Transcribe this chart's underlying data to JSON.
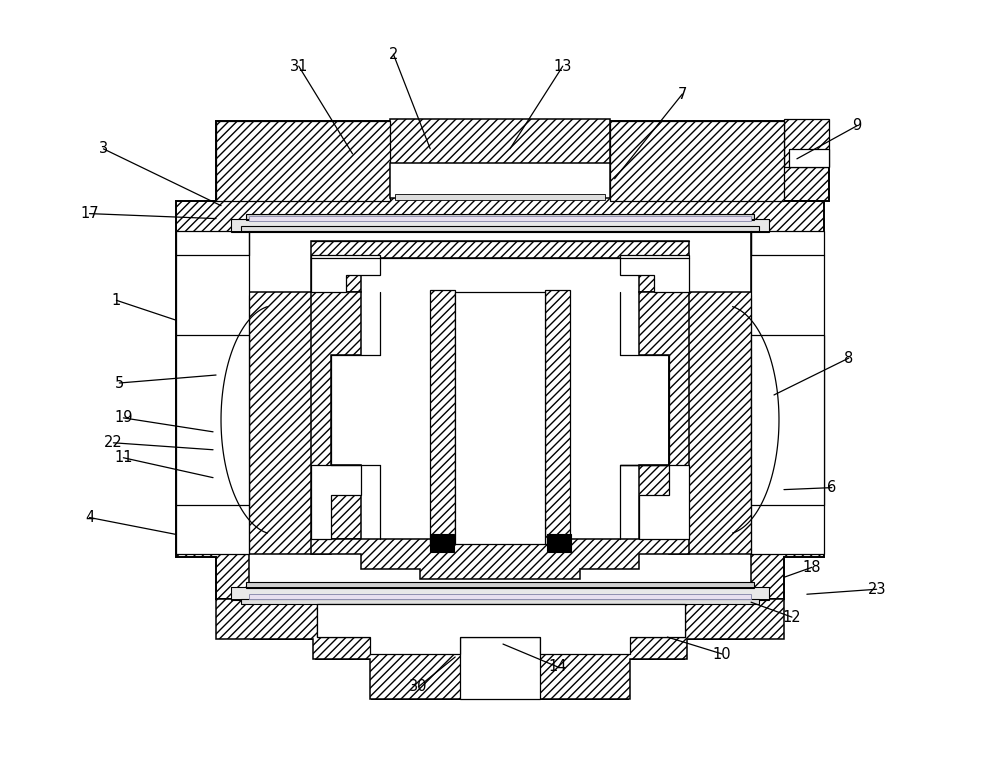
{
  "fig_width": 10.0,
  "fig_height": 7.66,
  "dpi": 100,
  "bg_color": "#ffffff",
  "leaders": [
    [
      "1",
      115,
      300,
      175,
      320
    ],
    [
      "2",
      393,
      53,
      430,
      148
    ],
    [
      "3",
      102,
      148,
      220,
      205
    ],
    [
      "4",
      88,
      518,
      175,
      535
    ],
    [
      "5",
      118,
      383,
      215,
      375
    ],
    [
      "6",
      833,
      488,
      785,
      490
    ],
    [
      "7",
      683,
      93,
      615,
      178
    ],
    [
      "8",
      850,
      358,
      775,
      395
    ],
    [
      "9",
      858,
      125,
      798,
      158
    ],
    [
      "10",
      723,
      655,
      668,
      638
    ],
    [
      "11",
      122,
      458,
      212,
      478
    ],
    [
      "12",
      793,
      618,
      752,
      603
    ],
    [
      "13",
      563,
      65,
      510,
      148
    ],
    [
      "14",
      558,
      668,
      503,
      645
    ],
    [
      "17",
      88,
      213,
      215,
      218
    ],
    [
      "18",
      813,
      568,
      785,
      578
    ],
    [
      "19",
      122,
      418,
      212,
      432
    ],
    [
      "22",
      112,
      443,
      212,
      450
    ],
    [
      "23",
      878,
      590,
      808,
      595
    ],
    [
      "30",
      418,
      688,
      455,
      658
    ],
    [
      "31",
      298,
      65,
      352,
      153
    ]
  ]
}
